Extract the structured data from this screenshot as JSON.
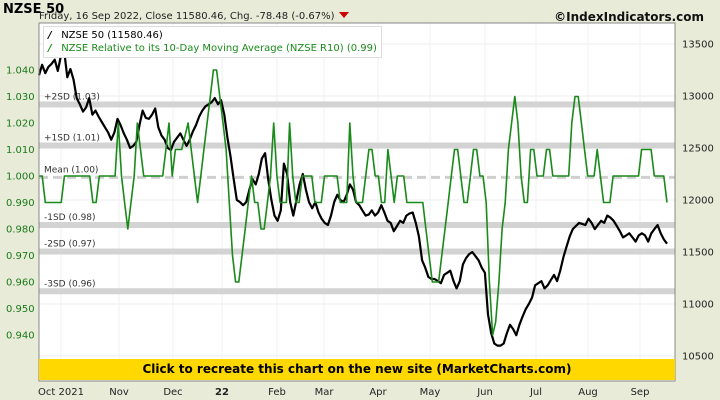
{
  "header": {
    "title": "NZSE 50",
    "subtitle": "Friday, 16 Sep 2022, Close 11580.46, Chg. -78.48 (-0.67%)",
    "site": "©IndexIndicators.com"
  },
  "banner": {
    "text": "Click to recreate this chart on the new site (MarketCharts.com)"
  },
  "legend": {
    "items": [
      {
        "label": "NZSE 50 (11580.46)",
        "color": "#000000"
      },
      {
        "label": "NZSE Relative to its 10-Day Moving Average (NZSE R10) (0.99)",
        "color": "#1a8a1a"
      }
    ]
  },
  "chart_data": {
    "type": "line",
    "x_tick_labels": [
      "Oct 2021",
      "Nov",
      "Dec",
      "22",
      "Feb",
      "Mar",
      "Apr",
      "May",
      "Jun",
      "Jul",
      "Aug",
      "Sep"
    ],
    "left_axis": {
      "ticks": [
        0.94,
        0.95,
        0.96,
        0.97,
        0.98,
        0.99,
        1.0,
        1.01,
        1.02,
        1.03,
        1.04
      ],
      "ylim": [
        0.932,
        1.047
      ]
    },
    "right_axis": {
      "ticks": [
        10500,
        11000,
        11500,
        12000,
        12500,
        13000,
        13500
      ],
      "ylim": [
        10400,
        13630
      ]
    },
    "bands": [
      {
        "label": "+2SD (1.03)",
        "value": 1.027
      },
      {
        "label": "+1SD (1.01)",
        "value": 1.0115
      },
      {
        "label": "Mean (1.00)",
        "value": 0.9995
      },
      {
        "label": "-1SD (0.98)",
        "value": 0.9815
      },
      {
        "label": "-2SD (0.97)",
        "value": 0.9715
      },
      {
        "label": "-3SD (0.96)",
        "value": 0.9565
      }
    ],
    "series": [
      {
        "name": "NZSE 50 (11580.46)",
        "color": "#000000",
        "axis": "right",
        "values": [
          13200,
          13300,
          13220,
          13280,
          13310,
          13350,
          13240,
          13390,
          13440,
          13180,
          13260,
          13160,
          12980,
          12920,
          12850,
          12890,
          12980,
          12820,
          12860,
          12800,
          12750,
          12700,
          12650,
          12580,
          12650,
          12780,
          12720,
          12640,
          12580,
          12500,
          12520,
          12560,
          12720,
          12860,
          12790,
          12780,
          12820,
          12880,
          12700,
          12620,
          12580,
          12500,
          12480,
          12560,
          12600,
          12640,
          12580,
          12520,
          12580,
          12660,
          12720,
          12800,
          12860,
          12900,
          12920,
          12940,
          12980,
          12920,
          12960,
          12820,
          12600,
          12420,
          12200,
          12000,
          11980,
          11950,
          11980,
          12100,
          12200,
          12150,
          12250,
          12400,
          12450,
          12200,
          12000,
          11850,
          11800,
          11900,
          12350,
          12250,
          11980,
          11850,
          12000,
          12150,
          12250,
          12100,
          11980,
          11920,
          11980,
          11880,
          11820,
          11780,
          11760,
          11850,
          11980,
          12050,
          12000,
          11980,
          12050,
          12150,
          12100,
          11980,
          11950,
          11900,
          11850,
          11860,
          11900,
          11850,
          11880,
          11950,
          11880,
          11800,
          11780,
          11700,
          11750,
          11800,
          11780,
          11850,
          11870,
          11880,
          11780,
          11650,
          11420,
          11350,
          11260,
          11240,
          11240,
          11220,
          11200,
          11280,
          11300,
          11320,
          11220,
          11150,
          11220,
          11380,
          11440,
          11480,
          11500,
          11460,
          11420,
          11350,
          11300,
          10900,
          10720,
          10620,
          10600,
          10600,
          10620,
          10720,
          10800,
          10760,
          10700,
          10800,
          10880,
          10950,
          11000,
          11060,
          11180,
          11200,
          11220,
          11150,
          11180,
          11230,
          11280,
          11220,
          11320,
          11450,
          11550,
          11650,
          11720,
          11750,
          11780,
          11770,
          11760,
          11820,
          11780,
          11720,
          11760,
          11800,
          11780,
          11850,
          11830,
          11800,
          11750,
          11700,
          11640,
          11660,
          11680,
          11640,
          11600,
          11660,
          11680,
          11660,
          11600,
          11680,
          11720,
          11760,
          11680,
          11620,
          11580
        ]
      },
      {
        "name": "NZSE Relative to its 10-Day Moving Average (NZSE R10) (0.99)",
        "color": "#1a8a1a",
        "axis": "left",
        "values": [
          1.0,
          1.0,
          0.99,
          0.99,
          0.99,
          0.99,
          0.99,
          0.99,
          1.0,
          1.0,
          1.0,
          1.0,
          1.0,
          1.0,
          1.0,
          1.0,
          1.0,
          0.99,
          0.99,
          1.0,
          1.0,
          1.0,
          1.0,
          1.0,
          1.0,
          1.02,
          1.0,
          0.99,
          0.98,
          0.99,
          1.0,
          1.02,
          1.01,
          1.0,
          1.0,
          1.0,
          1.0,
          1.0,
          1.0,
          1.0,
          1.01,
          1.02,
          1.0,
          1.01,
          1.01,
          1.01,
          1.015,
          1.02,
          1.01,
          1.0,
          0.99,
          1.0,
          1.01,
          1.02,
          1.03,
          1.04,
          1.04,
          1.03,
          1.02,
          1.01,
          0.99,
          0.97,
          0.96,
          0.96,
          0.97,
          0.98,
          0.99,
          1.0,
          0.99,
          0.99,
          0.98,
          0.98,
          0.99,
          1.0,
          1.02,
          1.0,
          0.99,
          0.99,
          0.99,
          1.02,
          1.0,
          0.99,
          0.99,
          1.0,
          1.0,
          1.0,
          1.0,
          0.99,
          0.99,
          0.99,
          1.0,
          1.0,
          1.0,
          1.0,
          1.0,
          0.99,
          0.99,
          0.99,
          1.02,
          1.0,
          0.99,
          0.99,
          0.99,
          1.0,
          1.01,
          1.01,
          1.0,
          1.0,
          0.99,
          0.99,
          1.01,
          1.0,
          0.99,
          1.0,
          1.0,
          1.0,
          0.99,
          0.99,
          0.99,
          0.99,
          0.99,
          0.99,
          0.98,
          0.97,
          0.96,
          0.96,
          0.96,
          0.97,
          0.98,
          0.99,
          1.0,
          1.01,
          1.01,
          1.0,
          0.99,
          0.99,
          1.0,
          1.01,
          1.01,
          1.0,
          1.0,
          0.99,
          0.96,
          0.94,
          0.945,
          0.96,
          0.98,
          0.99,
          1.01,
          1.02,
          1.03,
          1.02,
          1.0,
          0.99,
          0.99,
          1.01,
          1.01,
          1.0,
          1.0,
          1.0,
          1.01,
          1.01,
          1.0,
          1.0,
          1.0,
          1.0,
          1.0,
          1.0,
          1.02,
          1.03,
          1.03,
          1.02,
          1.01,
          1.0,
          1.0,
          1.0,
          1.01,
          1.0,
          0.99,
          0.99,
          0.99,
          1.0,
          1.0,
          1.0,
          1.0,
          1.0,
          1.0,
          1.0,
          1.0,
          1.0,
          1.01,
          1.01,
          1.01,
          1.01,
          1.0,
          1.0,
          1.0,
          1.0,
          0.99
        ]
      }
    ]
  }
}
